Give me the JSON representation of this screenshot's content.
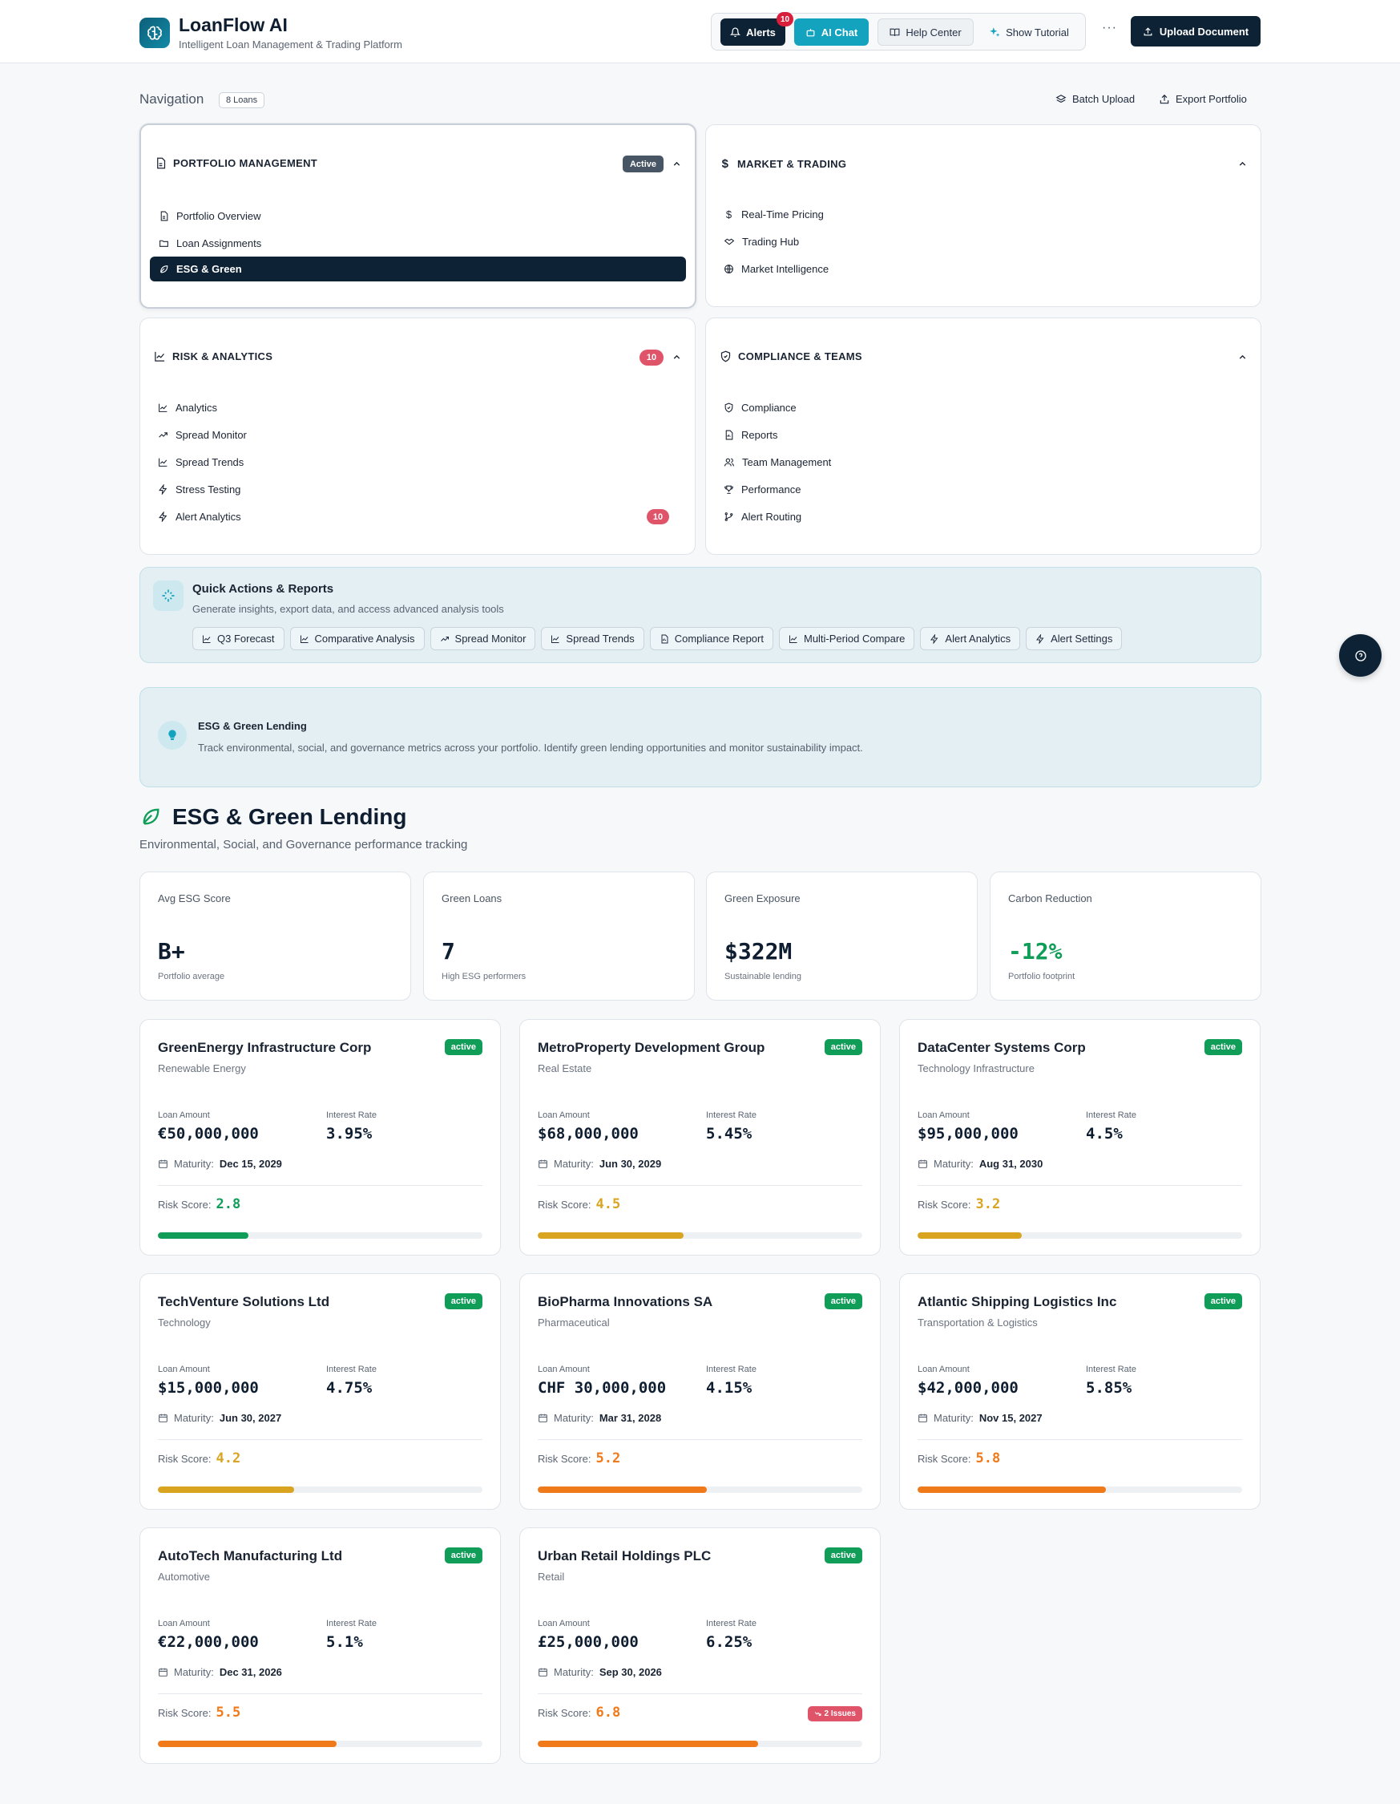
{
  "header": {
    "title": "LoanFlow AI",
    "subtitle": "Intelligent Loan Management & Trading Platform",
    "alerts_label": "Alerts",
    "alerts_count": "10",
    "ai_chat_label": "AI Chat",
    "help_label": "Help Center",
    "tutorial_label": "Show Tutorial",
    "more_label": "···",
    "upload_label": "Upload Document"
  },
  "nav": {
    "label": "Navigation",
    "loans_count": "8 Loans",
    "batch_upload": "Batch Upload",
    "export_portfolio": "Export Portfolio",
    "groups": [
      {
        "title": "PORTFOLIO MANAGEMENT",
        "badge": "Active",
        "items": [
          "Portfolio Overview",
          "Loan Assignments",
          "ESG & Green"
        ],
        "selected": "ESG & Green"
      },
      {
        "title": "MARKET & TRADING",
        "items": [
          "Real-Time Pricing",
          "Trading Hub",
          "Market Intelligence"
        ]
      },
      {
        "title": "RISK & ANALYTICS",
        "badge": "10",
        "items": [
          "Analytics",
          "Spread Monitor",
          "Spread Trends",
          "Stress Testing",
          "Alert Analytics"
        ],
        "item_badge": "10"
      },
      {
        "title": "COMPLIANCE & TEAMS",
        "items": [
          "Compliance",
          "Reports",
          "Team Management",
          "Performance",
          "Alert Routing"
        ]
      }
    ]
  },
  "quick_actions": {
    "title": "Quick Actions & Reports",
    "subtitle": "Generate insights, export data, and access advanced analysis tools",
    "chips": [
      "Q3 Forecast",
      "Comparative Analysis",
      "Spread Monitor",
      "Spread Trends",
      "Compliance Report",
      "Multi-Period Compare",
      "Alert Analytics",
      "Alert Settings"
    ]
  },
  "info": {
    "title": "ESG & Green Lending",
    "text": "Track environmental, social, and governance metrics across your portfolio. Identify green lending opportunities and monitor sustainability impact."
  },
  "section": {
    "title": "ESG & Green Lending",
    "subtitle": "Environmental, Social, and Governance performance tracking"
  },
  "stats": [
    {
      "label": "Avg ESG Score",
      "value": "B+",
      "sub": "Portfolio average",
      "color": "#0e1e30"
    },
    {
      "label": "Green Loans",
      "value": "7",
      "sub": "High ESG performers",
      "color": "#0e1e30"
    },
    {
      "label": "Green Exposure",
      "value": "$322M",
      "sub": "Sustainable lending",
      "color": "#0e1e30"
    },
    {
      "label": "Carbon Reduction",
      "value": "-12%",
      "sub": "Portfolio footprint",
      "color": "#0f9d58"
    }
  ],
  "labels": {
    "loan_amount": "Loan Amount",
    "interest_rate": "Interest Rate",
    "maturity": "Maturity:",
    "risk_score": "Risk Score:"
  },
  "loans": [
    {
      "name": "GreenEnergy Infrastructure Corp",
      "sector": "Renewable Energy",
      "status": "active",
      "amount": "€50,000,000",
      "rate": "3.95%",
      "maturity": "Dec 15, 2029",
      "risk": "2.8",
      "risk_fraction": 0.28,
      "risk_color": "#0f9d58"
    },
    {
      "name": "MetroProperty Development Group",
      "sector": "Real Estate",
      "status": "active",
      "amount": "$68,000,000",
      "rate": "5.45%",
      "maturity": "Jun 30, 2029",
      "risk": "4.5",
      "risk_fraction": 0.45,
      "risk_color": "#d9a521"
    },
    {
      "name": "DataCenter Systems Corp",
      "sector": "Technology Infrastructure",
      "status": "active",
      "amount": "$95,000,000",
      "rate": "4.5%",
      "maturity": "Aug 31, 2030",
      "risk": "3.2",
      "risk_fraction": 0.32,
      "risk_color": "#d9a521"
    },
    {
      "name": "TechVenture Solutions Ltd",
      "sector": "Technology",
      "status": "active",
      "amount": "$15,000,000",
      "rate": "4.75%",
      "maturity": "Jun 30, 2027",
      "risk": "4.2",
      "risk_fraction": 0.42,
      "risk_color": "#d9a521"
    },
    {
      "name": "BioPharma Innovations SA",
      "sector": "Pharmaceutical",
      "status": "active",
      "amount": "CHF 30,000,000",
      "rate": "4.15%",
      "maturity": "Mar 31, 2028",
      "risk": "5.2",
      "risk_fraction": 0.52,
      "risk_color": "#f07a1a"
    },
    {
      "name": "Atlantic Shipping Logistics Inc",
      "sector": "Transportation & Logistics",
      "status": "active",
      "amount": "$42,000,000",
      "rate": "5.85%",
      "maturity": "Nov 15, 2027",
      "risk": "5.8",
      "risk_fraction": 0.58,
      "risk_color": "#f07a1a"
    },
    {
      "name": "AutoTech Manufacturing Ltd",
      "sector": "Automotive",
      "status": "active",
      "amount": "€22,000,000",
      "rate": "5.1%",
      "maturity": "Dec 31, 2026",
      "risk": "5.5",
      "risk_fraction": 0.55,
      "risk_color": "#f07a1a"
    },
    {
      "name": "Urban Retail Holdings PLC",
      "sector": "Retail",
      "status": "active",
      "amount": "£25,000,000",
      "rate": "6.25%",
      "maturity": "Sep 30, 2026",
      "risk": "6.8",
      "risk_fraction": 0.68,
      "risk_color": "#f07a1a",
      "issues": "2 Issues"
    }
  ]
}
